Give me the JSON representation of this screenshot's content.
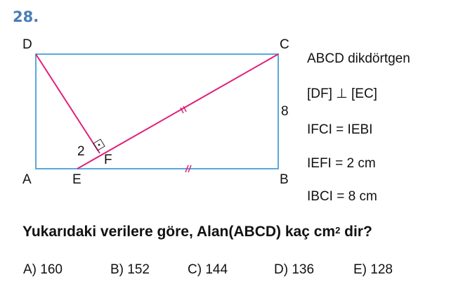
{
  "question_number": "28.",
  "figure": {
    "vertices": {
      "A": "A",
      "B": "B",
      "C": "C",
      "D": "D",
      "E": "E",
      "F": "F"
    },
    "labels": {
      "ef_length": "2",
      "bc_length": "8"
    },
    "colors": {
      "rectangle": "#5aa9dc",
      "segments": "#e0207a"
    }
  },
  "given": [
    "ABCD dikdörtgen",
    "[DF] ⊥ [EC]",
    "IFCI = IEBI",
    "IEFI = 2 cm",
    "IBCI = 8 cm"
  ],
  "question": {
    "text_before": "Yukarıdaki verilere göre, Alan(ABCD) kaç cm",
    "superscript": "2",
    "text_after": " dir?"
  },
  "choices": [
    {
      "letter": "A)",
      "value": "160"
    },
    {
      "letter": "B)",
      "value": "152"
    },
    {
      "letter": "C)",
      "value": "144"
    },
    {
      "letter": "D)",
      "value": "136"
    },
    {
      "letter": "E)",
      "value": "128"
    }
  ]
}
